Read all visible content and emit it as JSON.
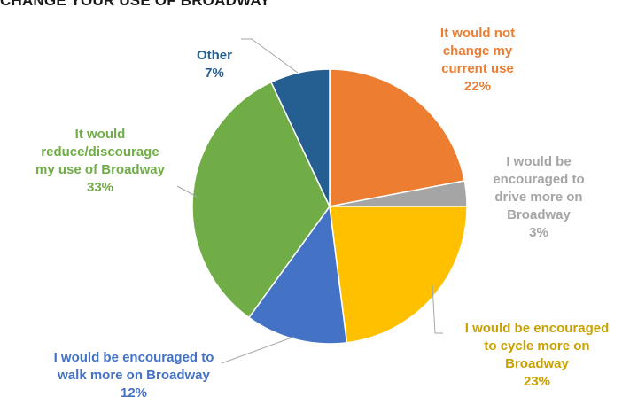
{
  "chart_data": {
    "type": "pie",
    "title": "CHANGE YOUR USE OF BROADWAY",
    "start_angle_deg": 0,
    "direction": "clockwise",
    "slices": [
      {
        "label": "It would not\nchange my\ncurrent use",
        "value": 22,
        "pct_label": "22%",
        "color": "#ED7D31"
      },
      {
        "label": "I would be\nencouraged to\ndrive more on\nBroadway",
        "value": 3,
        "pct_label": "3%",
        "color": "#A5A5A5"
      },
      {
        "label": "I would be encouraged\nto cycle more on\nBroadway",
        "value": 23,
        "pct_label": "23%",
        "color": "#FFC000"
      },
      {
        "label": "I would be encouraged to\nwalk more on Broadway",
        "value": 12,
        "pct_label": "12%",
        "color": "#4472C4"
      },
      {
        "label": "It would\nreduce/discourage\nmy use of Broadway",
        "value": 33,
        "pct_label": "33%",
        "color": "#70AD47"
      },
      {
        "label": "Other",
        "value": 7,
        "pct_label": "7%",
        "color": "#255E91"
      }
    ]
  }
}
